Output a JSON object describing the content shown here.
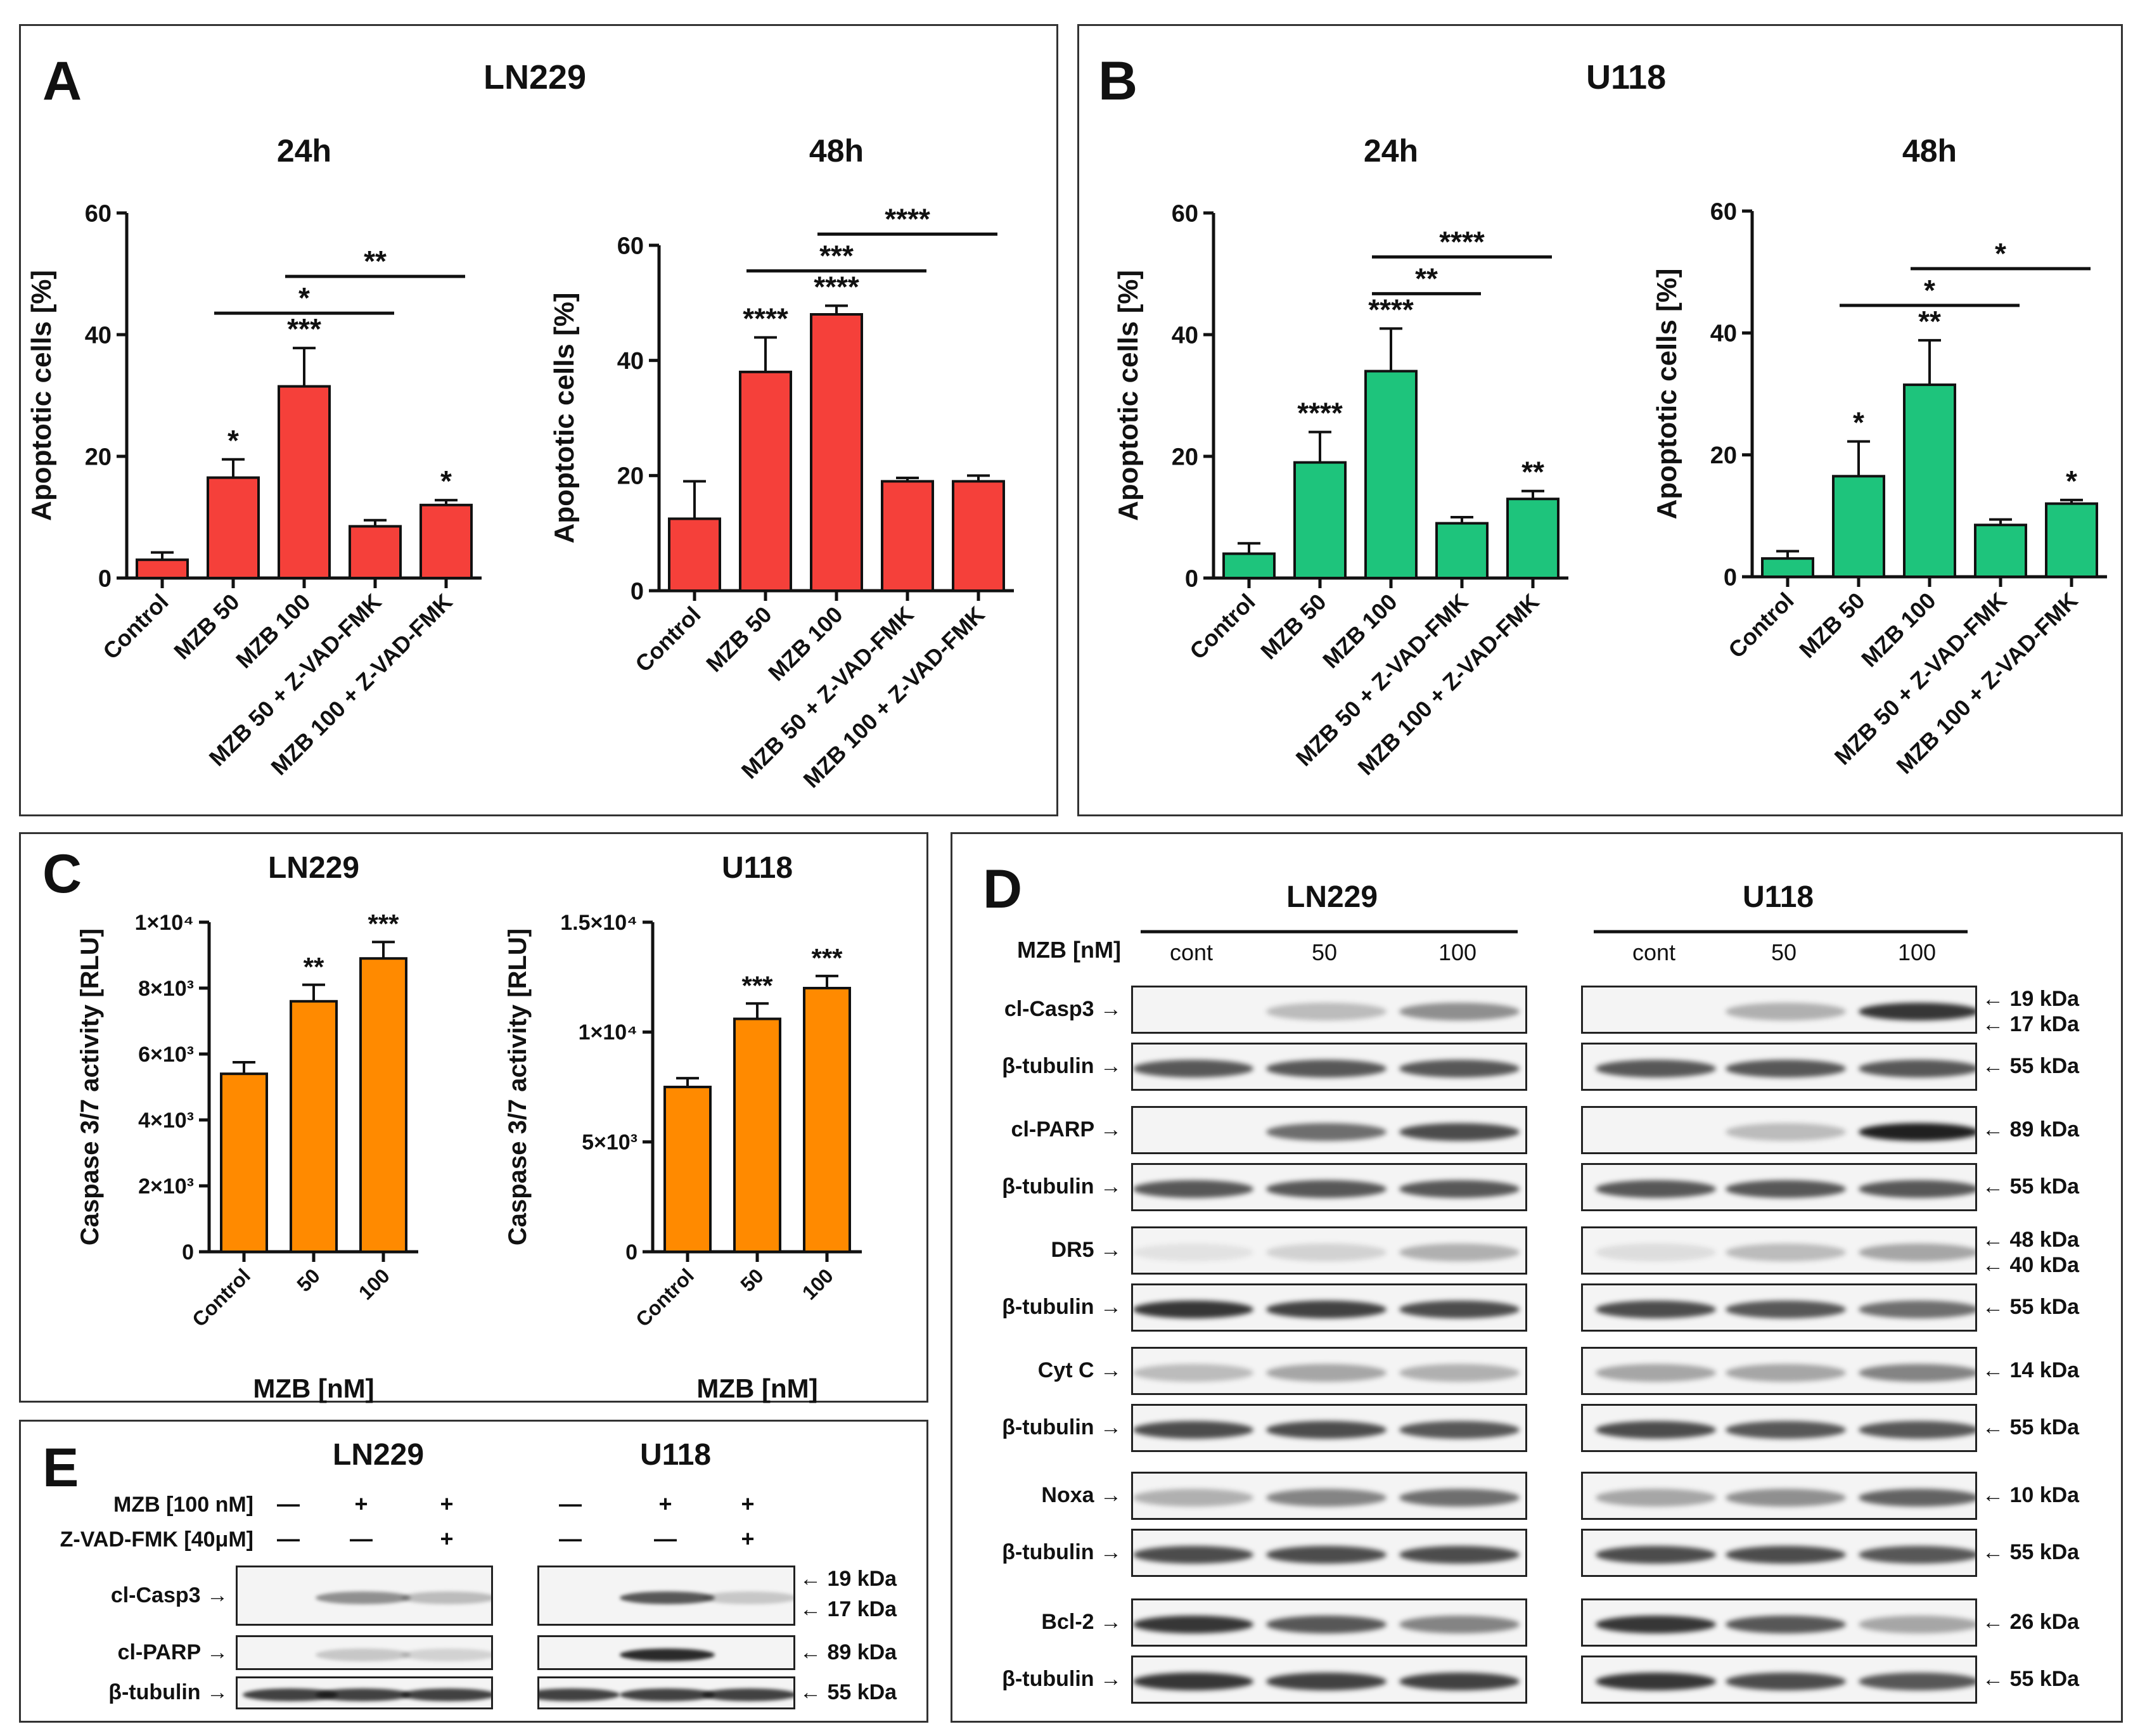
{
  "panels": {
    "A": {
      "letter": "A",
      "title": "LN229"
    },
    "B": {
      "letter": "B",
      "title": "U118"
    },
    "C": {
      "letter": "C"
    },
    "D": {
      "letter": "D"
    },
    "E": {
      "letter": "E"
    }
  },
  "colors": {
    "red": "#f5403a",
    "green": "#1ec47c",
    "orange": "#ff8a00",
    "axis": "#111111"
  },
  "chart_data": [
    {
      "id": "A24",
      "type": "bar",
      "title": "24h",
      "ylabel": "Apoptotic cells [%]",
      "ylim": [
        0,
        60
      ],
      "yticks": [
        "0",
        "20",
        "40",
        "60"
      ],
      "categories": [
        "Control",
        "MZB 50",
        "MZB 100",
        "MZB 50 + Z-VAD-FMK",
        "MZB 100 + Z-VAD-FMK"
      ],
      "values": [
        3,
        16.5,
        31.5,
        8.5,
        12
      ],
      "errors": [
        1.2,
        3,
        6.3,
        1,
        0.8
      ],
      "stars": [
        "",
        "*",
        "***",
        "",
        "*"
      ],
      "brackets": [
        {
          "from": 1,
          "to": 3,
          "label": "*"
        },
        {
          "from": 2,
          "to": 4,
          "label": "**"
        }
      ],
      "color": "red"
    },
    {
      "id": "A48",
      "type": "bar",
      "title": "48h",
      "ylabel": "Apoptotic cells [%]",
      "ylim": [
        0,
        60
      ],
      "yticks": [
        "0",
        "20",
        "40",
        "60"
      ],
      "categories": [
        "Control",
        "MZB 50",
        "MZB 100",
        "MZB 50 + Z-VAD-FMK",
        "MZB 100 + Z-VAD-FMK"
      ],
      "values": [
        12.5,
        38,
        48,
        19,
        19
      ],
      "errors": [
        6.5,
        6,
        1.5,
        0.6,
        1
      ],
      "stars": [
        "",
        "****",
        "****",
        "",
        ""
      ],
      "brackets": [
        {
          "from": 1,
          "to": 3,
          "label": "***"
        },
        {
          "from": 2,
          "to": 4,
          "label": "****"
        }
      ],
      "color": "red"
    },
    {
      "id": "B24",
      "type": "bar",
      "title": "24h",
      "ylabel": "Apoptotic cells [%]",
      "ylim": [
        0,
        60
      ],
      "yticks": [
        "0",
        "20",
        "40",
        "60"
      ],
      "categories": [
        "Control",
        "MZB 50",
        "MZB 100",
        "MZB 50 + Z-VAD-FMK",
        "MZB 100 + Z-VAD-FMK"
      ],
      "values": [
        4,
        19,
        34,
        9,
        13
      ],
      "errors": [
        1.7,
        5,
        7,
        1,
        1.3
      ],
      "stars": [
        "",
        "****",
        "****",
        "",
        "**"
      ],
      "brackets": [
        {
          "from": 2,
          "to": 3,
          "label": "**"
        },
        {
          "from": 2,
          "to": 4,
          "label": "****"
        }
      ],
      "color": "green"
    },
    {
      "id": "B48",
      "type": "bar",
      "title": "48h",
      "ylabel": "Apoptotic cells [%]",
      "ylim": [
        0,
        60
      ],
      "yticks": [
        "0",
        "20",
        "40",
        "60"
      ],
      "categories": [
        "Control",
        "MZB 50",
        "MZB 100",
        "MZB 50 + Z-VAD-FMK",
        "MZB 100 + Z-VAD-FMK"
      ],
      "values": [
        3,
        16.5,
        31.5,
        8.5,
        12
      ],
      "errors": [
        1.2,
        5.7,
        7.3,
        0.9,
        0.6
      ],
      "stars": [
        "",
        "*",
        "**",
        "",
        "*"
      ],
      "brackets": [
        {
          "from": 1,
          "to": 3,
          "label": "*"
        },
        {
          "from": 2,
          "to": 4,
          "label": "*"
        }
      ],
      "color": "green"
    },
    {
      "id": "C1",
      "type": "bar",
      "title": "LN229",
      "ylabel": "Caspase 3/7 activity [RLU]",
      "xlabel": "MZB [nM]",
      "ylim": [
        0,
        10000
      ],
      "yticks": [
        "0",
        "2×10³",
        "4×10³",
        "6×10³",
        "8×10³",
        "1×10⁴"
      ],
      "categories": [
        "Control",
        "50",
        "100"
      ],
      "values": [
        5400,
        7600,
        8900
      ],
      "errors": [
        350,
        500,
        500
      ],
      "stars": [
        "",
        "**",
        "***"
      ],
      "brackets": [],
      "color": "orange"
    },
    {
      "id": "C2",
      "type": "bar",
      "title": "U118",
      "ylabel": "Caspase 3/7 activity [RLU]",
      "xlabel": "MZB [nM]",
      "ylim": [
        0,
        15000
      ],
      "yticks": [
        "0",
        "5×10³",
        "1×10⁴",
        "1.5×10⁴"
      ],
      "categories": [
        "Control",
        "50",
        "100"
      ],
      "values": [
        7500,
        10600,
        12000
      ],
      "errors": [
        400,
        700,
        550
      ],
      "stars": [
        "",
        "***",
        "***"
      ],
      "brackets": [],
      "color": "orange"
    }
  ],
  "western_D": {
    "ln229_title": "LN229",
    "u118_title": "U118",
    "mzb_label": "MZB [nM]",
    "lanes": [
      "cont",
      "50",
      "100"
    ],
    "rows": [
      {
        "label": "cl-Casp3",
        "kda": [
          "19 kDa",
          "17 kDa"
        ]
      },
      {
        "label": "β-tubulin",
        "kda": [
          "55 kDa"
        ]
      },
      {
        "label": "cl-PARP",
        "kda": [
          "89 kDa"
        ]
      },
      {
        "label": "β-tubulin",
        "kda": [
          "55 kDa"
        ]
      },
      {
        "label": "DR5",
        "kda": [
          "48 kDa",
          "40 kDa"
        ]
      },
      {
        "label": "β-tubulin",
        "kda": [
          "55 kDa"
        ]
      },
      {
        "label": "Cyt C",
        "kda": [
          "14 kDa"
        ]
      },
      {
        "label": "β-tubulin",
        "kda": [
          "55 kDa"
        ]
      },
      {
        "label": "Noxa",
        "kda": [
          "10 kDa"
        ]
      },
      {
        "label": "β-tubulin",
        "kda": [
          "55 kDa"
        ]
      },
      {
        "label": "Bcl-2",
        "kda": [
          "26 kDa"
        ]
      },
      {
        "label": "β-tubulin",
        "kda": [
          "55 kDa"
        ]
      }
    ]
  },
  "western_E": {
    "ln229_title": "LN229",
    "u118_title": "U118",
    "mzb_label": "MZB [100 nM]",
    "zvad_label": "Z-VAD-FMK [40μM]",
    "mzb_signs": [
      "—",
      "+",
      "+"
    ],
    "zvad_signs": [
      "—",
      "—",
      "+"
    ],
    "rows": [
      {
        "label": "cl-Casp3",
        "kda": [
          "19 kDa",
          "17 kDa"
        ]
      },
      {
        "label": "cl-PARP",
        "kda": [
          "89 kDa"
        ]
      },
      {
        "label": "β-tubulin",
        "kda": [
          "55 kDa"
        ]
      }
    ]
  }
}
